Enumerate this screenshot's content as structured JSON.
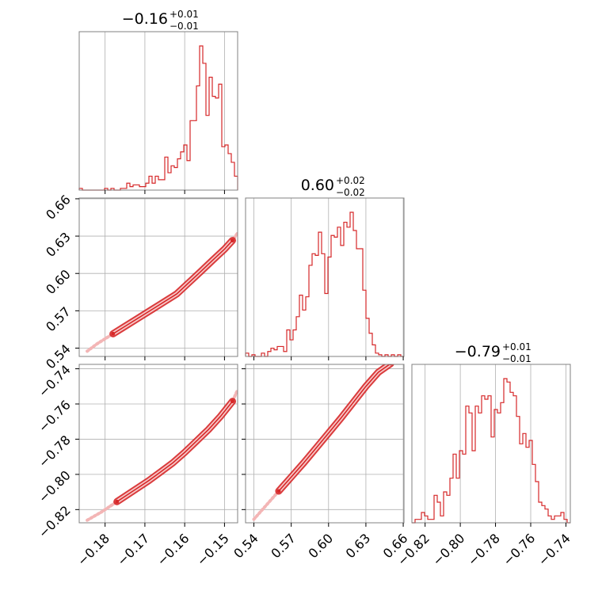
{
  "chart_data": {
    "type": "corner",
    "color": "#d62728",
    "grid": true,
    "parameters": [
      {
        "key": "p0",
        "range": [
          -0.1865,
          -0.1467
        ],
        "ticks": [
          -0.18,
          -0.17,
          -0.16,
          -0.15
        ],
        "tick_labels": [
          "−0.18",
          "−0.17",
          "−0.16",
          "−0.15"
        ],
        "title": {
          "median": "−0.16",
          "plus": "+0.01",
          "minus": "−0.01"
        }
      },
      {
        "key": "p1",
        "range": [
          0.5333,
          0.6606
        ],
        "ticks": [
          0.54,
          0.57,
          0.6,
          0.63,
          0.66
        ],
        "tick_labels": [
          "0.54",
          "0.57",
          "0.60",
          "0.63",
          "0.66"
        ],
        "title": {
          "median": "0.60",
          "plus": "+0.02",
          "minus": "−0.02"
        }
      },
      {
        "key": "p2",
        "range": [
          -0.8275,
          -0.7375
        ],
        "ticks": [
          -0.82,
          -0.8,
          -0.78,
          -0.76,
          -0.74
        ],
        "tick_labels": [
          "−0.82",
          "−0.80",
          "−0.78",
          "−0.76",
          "−0.74"
        ],
        "title": {
          "median": "−0.79",
          "plus": "+0.01",
          "minus": "−0.01"
        }
      }
    ],
    "histograms": [
      {
        "param": "p0",
        "bins": 50,
        "counts": [
          1,
          0,
          0,
          0,
          0,
          0,
          0,
          0,
          1,
          0,
          1,
          0,
          0,
          1,
          1,
          4,
          2,
          3,
          3,
          2,
          2,
          4,
          8,
          4,
          8,
          6,
          6,
          19,
          10,
          14,
          13,
          18,
          22,
          26,
          17,
          40,
          40,
          60,
          83,
          73,
          43,
          65,
          54,
          53,
          61,
          25,
          26,
          21,
          16,
          8
        ]
      },
      {
        "param": "p1",
        "bins": 50,
        "counts": [
          2,
          0,
          1,
          0,
          0,
          2,
          0,
          3,
          5,
          4,
          6,
          6,
          3,
          16,
          10,
          16,
          24,
          37,
          28,
          36,
          55,
          62,
          61,
          75,
          62,
          38,
          60,
          73,
          72,
          78,
          67,
          81,
          78,
          87,
          76,
          65,
          65,
          40,
          23,
          14,
          7,
          2,
          1,
          0,
          1,
          0,
          1,
          0,
          1,
          0
        ]
      },
      {
        "param": "p2",
        "bins": 50,
        "counts": [
          0,
          1,
          1,
          3,
          2,
          1,
          1,
          8,
          6,
          2,
          9,
          8,
          13,
          20,
          13,
          21,
          20,
          34,
          32,
          21,
          34,
          32,
          37,
          36,
          37,
          25,
          33,
          32,
          35,
          42,
          41,
          38,
          37,
          31,
          23,
          26,
          22,
          24,
          17,
          12,
          6,
          5,
          4,
          2,
          1,
          2,
          2,
          3,
          1,
          0
        ]
      }
    ],
    "pairs": [
      {
        "x": "p0",
        "y": "p1",
        "curve": [
          [
            -0.1845,
            0.5375
          ],
          [
            -0.182,
            0.5435
          ],
          [
            -0.178,
            0.5515
          ],
          [
            -0.175,
            0.5575
          ],
          [
            -0.172,
            0.5635
          ],
          [
            -0.168,
            0.5715
          ],
          [
            -0.165,
            0.5775
          ],
          [
            -0.162,
            0.5835
          ],
          [
            -0.159,
            0.5925
          ],
          [
            -0.156,
            0.6015
          ],
          [
            -0.153,
            0.6105
          ],
          [
            -0.15,
            0.6195
          ],
          [
            -0.148,
            0.6265
          ],
          [
            -0.1467,
            0.6325
          ]
        ]
      },
      {
        "x": "p0",
        "y": "p2",
        "curve": [
          [
            -0.1845,
            -0.826
          ],
          [
            -0.181,
            -0.8215
          ],
          [
            -0.177,
            -0.8155
          ],
          [
            -0.173,
            -0.8095
          ],
          [
            -0.169,
            -0.8035
          ],
          [
            -0.166,
            -0.7985
          ],
          [
            -0.163,
            -0.7935
          ],
          [
            -0.16,
            -0.7875
          ],
          [
            -0.157,
            -0.781
          ],
          [
            -0.154,
            -0.7745
          ],
          [
            -0.151,
            -0.767
          ],
          [
            -0.148,
            -0.7585
          ],
          [
            -0.1467,
            -0.752
          ]
        ]
      },
      {
        "x": "p1",
        "y": "p2",
        "curve": [
          [
            0.54,
            -0.8255
          ],
          [
            0.55,
            -0.8175
          ],
          [
            0.56,
            -0.8095
          ],
          [
            0.57,
            -0.8015
          ],
          [
            0.58,
            -0.7935
          ],
          [
            0.59,
            -0.785
          ],
          [
            0.6,
            -0.7765
          ],
          [
            0.61,
            -0.768
          ],
          [
            0.62,
            -0.759
          ],
          [
            0.63,
            -0.75
          ],
          [
            0.64,
            -0.742
          ],
          [
            0.65,
            -0.737
          ]
        ]
      }
    ]
  }
}
